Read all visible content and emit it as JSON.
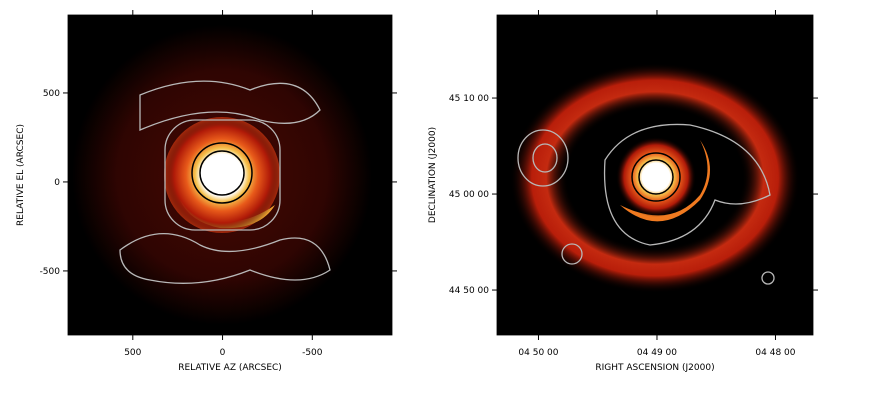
{
  "chart_data": [
    {
      "type": "image",
      "xlabel": "RELATIVE AZ (ARCSEC)",
      "ylabel": "RELATIVE EL (ARCSEC)",
      "xlim": [
        861,
        -944
      ],
      "ylim": [
        -860,
        938
      ],
      "xticks": [
        500,
        0,
        -500
      ],
      "yticks": [
        500,
        0,
        -500
      ]
    },
    {
      "type": "image",
      "xlabel": "RIGHT ASCENSION  (J2000)",
      "ylabel": "DECLINATION  (J2000)",
      "xlim": [
        17421,
        17261
      ],
      "ylim": [
        161119,
        163119
      ],
      "xticks": [
        {
          "value": 17400,
          "label": "04 50 00"
        },
        {
          "value": 17340,
          "label": "04 49 00"
        },
        {
          "value": 17280,
          "label": "04 48 00"
        }
      ],
      "yticks": [
        {
          "value": 162600,
          "label": "45 10 00"
        },
        {
          "value": 162000,
          "label": "45 00 00"
        },
        {
          "value": 161400,
          "label": "44 50 00"
        }
      ]
    }
  ]
}
